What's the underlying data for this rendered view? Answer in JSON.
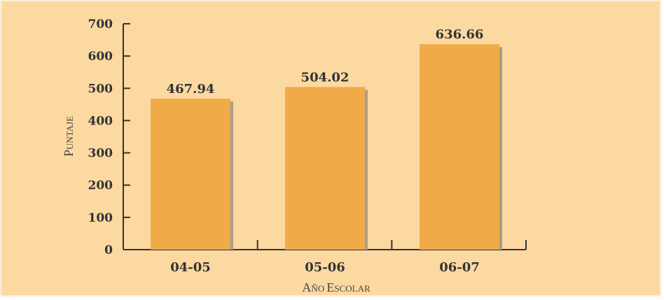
{
  "chart_data": {
    "type": "bar",
    "categories": [
      "04-05",
      "05-06",
      "06-07"
    ],
    "values": [
      467.94,
      504.02,
      636.66
    ],
    "value_labels": [
      "467.94",
      "504.02",
      "636.66"
    ],
    "ylabel": "Puntaje",
    "xlabel": "Año Escolar",
    "ylim": [
      0,
      700
    ],
    "yticks": [
      0,
      100,
      200,
      300,
      400,
      500,
      600,
      700
    ],
    "grid": false,
    "bar_color": "#f0aa47",
    "bar_shadow_color": "#a99e8e",
    "background_color": "#fdd9a2"
  }
}
